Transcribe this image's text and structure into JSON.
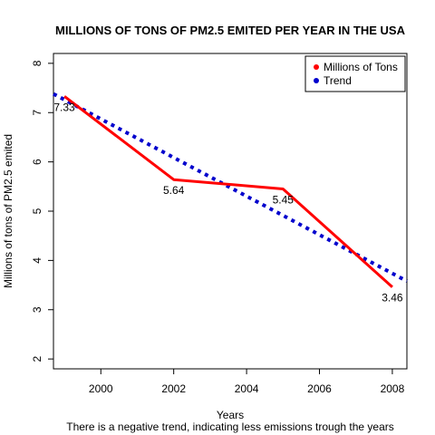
{
  "chart_data": {
    "type": "line",
    "title": "MILLIONS OF TONS OF PM2.5 EMITED PER YEAR IN THE USA",
    "xlabel": "Years",
    "ylabel": "Millions of tons of PM2.5 emited",
    "subtitle": "There is a negative trend, indicating less emissions trough the years",
    "xlim": [
      1998.7,
      2008.4
    ],
    "ylim": [
      1.8,
      8.2
    ],
    "xticks": [
      2000,
      2002,
      2004,
      2006,
      2008
    ],
    "xtick_labels": [
      "2000",
      "2002",
      "2004",
      "2006",
      "2008"
    ],
    "yticks": [
      2,
      3,
      4,
      5,
      6,
      7,
      8
    ],
    "ytick_labels": [
      "2",
      "3",
      "4",
      "5",
      "6",
      "7",
      "8"
    ],
    "grid": false,
    "legend_position": "top-right",
    "series": [
      {
        "name": "Millions of Tons",
        "color": "#ff0000",
        "style": "solid",
        "x": [
          1999,
          2002,
          2005,
          2008
        ],
        "y": [
          7.33,
          5.64,
          5.45,
          3.46
        ],
        "data_labels": [
          "7.33",
          "5.64",
          "5.45",
          "3.46"
        ]
      },
      {
        "name": "Trend",
        "color": "#0000cd",
        "style": "dotted",
        "x": [
          1998.7,
          2008.4
        ],
        "y": [
          7.38,
          3.58
        ]
      }
    ]
  }
}
